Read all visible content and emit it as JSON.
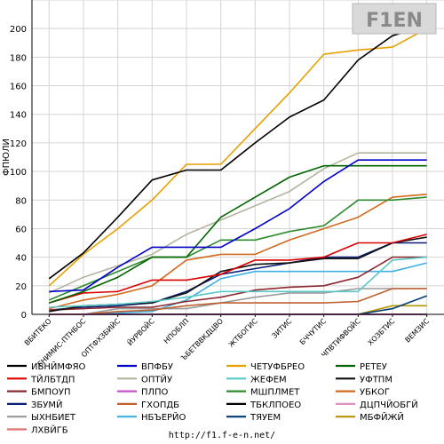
{
  "watermark": "F1EN",
  "footer_url": "http://f1.f-e-n.net/",
  "chart_data": {
    "type": "line",
    "title": "",
    "xlabel": "",
    "ylabel": "ФПЮЛИ",
    "ylim": [
      0,
      220
    ],
    "yticks": [
      0,
      20,
      40,
      60,
      80,
      100,
      120,
      140,
      160,
      180,
      200,
      220
    ],
    "grid": true,
    "legend_position": "bottom",
    "categories": [
      "ВБИТЕКО",
      "ЕНИМИС-ПТНБОС",
      "ОПТФХЗБИЙС",
      "ЙУРВОЙС",
      "НПОБЛП",
      "ЪБЕТВВКДЦВО",
      "ЖТБОГИС",
      "ЗИТИС",
      "БЧЧУТИС",
      "ЧПВТИФВОЙС",
      "ХОЗБТИС",
      "ВЕМЗИС"
    ],
    "series": [
      {
        "name": "ИБНЙМФЯО",
        "color": "#000000",
        "values": [
          25,
          43,
          68,
          94,
          101,
          101,
          120,
          138,
          150,
          178,
          195,
          202
        ]
      },
      {
        "name": "ВПФБУ",
        "color": "#0000c8",
        "values": [
          16,
          17,
          33,
          47,
          47,
          47,
          60,
          74,
          93,
          108,
          108,
          108
        ]
      },
      {
        "name": "ЧЕТУФБРЕО",
        "color": "#e6a000",
        "values": [
          20,
          42,
          60,
          80,
          105,
          105,
          130,
          155,
          182,
          185,
          187,
          200
        ]
      },
      {
        "name": "РЕТЕУ",
        "color": "#006400",
        "values": [
          8,
          16,
          26,
          40,
          40,
          68,
          82,
          96,
          104,
          104,
          104,
          104
        ]
      },
      {
        "name": "ТЙЛБТДП",
        "color": "#dc0000",
        "values": [
          8,
          15,
          16,
          24,
          24,
          28,
          38,
          38,
          40,
          50,
          50,
          56
        ]
      },
      {
        "name": "ОПТЙУ",
        "color": "#b4b4a0",
        "values": [
          15,
          26,
          34,
          42,
          56,
          66,
          76,
          86,
          102,
          113,
          113,
          113
        ]
      },
      {
        "name": "ЖЕФЕМ",
        "color": "#5ac8c8",
        "values": [
          5,
          6,
          7,
          9,
          12,
          16,
          16,
          16,
          16,
          16,
          38,
          40
        ]
      },
      {
        "name": "УФТПМ",
        "color": "#101010",
        "values": [
          2,
          6,
          7,
          8,
          15,
          30,
          35,
          36,
          39,
          39,
          50,
          54
        ]
      },
      {
        "name": "БМПОУП",
        "color": "#8c2830",
        "values": [
          3,
          4,
          5,
          5,
          9,
          12,
          17,
          19,
          20,
          26,
          40,
          40
        ]
      },
      {
        "name": "ПЛПО",
        "color": "#c850c8",
        "values": [
          0,
          0,
          0,
          0,
          0,
          0,
          0,
          0,
          0,
          0,
          0,
          0
        ]
      },
      {
        "name": "МШПЛМЕТ",
        "color": "#2e8b2e",
        "values": [
          10,
          20,
          30,
          40,
          40,
          52,
          52,
          58,
          62,
          80,
          80,
          82
        ]
      },
      {
        "name": "УБКОГ",
        "color": "#d2691e",
        "values": [
          4,
          10,
          14,
          20,
          38,
          42,
          42,
          52,
          60,
          68,
          82,
          84
        ]
      },
      {
        "name": "ЗБУМЙ",
        "color": "#0a1e78",
        "values": [
          3,
          5,
          6,
          8,
          16,
          28,
          32,
          36,
          40,
          40,
          50,
          50
        ]
      },
      {
        "name": "ГХОПДБ",
        "color": "#c06030",
        "values": [
          0,
          0,
          2,
          3,
          6,
          8,
          8,
          8,
          8,
          9,
          18,
          18
        ]
      },
      {
        "name": "ТБКЛПОЕО",
        "color": "#000000",
        "values": [
          0,
          0,
          0,
          0,
          0,
          0,
          0,
          0,
          0,
          0,
          0,
          0
        ]
      },
      {
        "name": "ДЦПЧЙОБГЙ",
        "color": "#e090c0",
        "values": [
          0,
          0,
          0,
          0,
          0,
          0,
          0,
          0,
          0,
          0,
          0,
          0
        ]
      },
      {
        "name": "ЫХНБИЕТ",
        "color": "#9a9a9a",
        "values": [
          0,
          0,
          4,
          4,
          4,
          8,
          12,
          15,
          15,
          18,
          18,
          18
        ]
      },
      {
        "name": "НБЪЕРЙО",
        "color": "#40b0e0",
        "values": [
          0,
          0,
          1,
          2,
          10,
          25,
          30,
          30,
          30,
          30,
          30,
          36
        ]
      },
      {
        "name": "ТЯУЕМ",
        "color": "#003c78",
        "values": [
          0,
          0,
          0,
          0,
          0,
          0,
          0,
          0,
          0,
          0,
          4,
          13
        ]
      },
      {
        "name": "МБФЙЖЙ",
        "color": "#b49600",
        "values": [
          0,
          0,
          0,
          0,
          0,
          0,
          0,
          0,
          0,
          0,
          6,
          6
        ]
      },
      {
        "name": "ЛХВЙГБ",
        "color": "#e07070",
        "values": [
          0,
          0,
          0,
          0,
          0,
          0,
          0,
          0,
          0,
          0,
          0,
          0
        ]
      }
    ]
  }
}
